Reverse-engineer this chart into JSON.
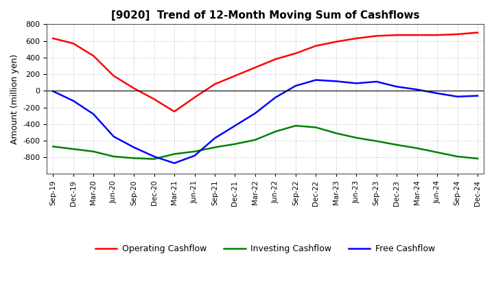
{
  "title": "[9020]  Trend of 12-Month Moving Sum of Cashflows",
  "ylabel": "Amount (million yen)",
  "background_color": "#ffffff",
  "grid_color": "#aaaaaa",
  "x_labels": [
    "Sep-19",
    "Dec-19",
    "Mar-20",
    "Jun-20",
    "Sep-20",
    "Dec-20",
    "Mar-21",
    "Jun-21",
    "Sep-21",
    "Dec-21",
    "Mar-22",
    "Jun-22",
    "Sep-22",
    "Dec-22",
    "Mar-23",
    "Jun-23",
    "Sep-23",
    "Dec-23",
    "Mar-24",
    "Jun-24",
    "Sep-24",
    "Dec-24"
  ],
  "operating_cashflow": [
    630000,
    570000,
    420000,
    180000,
    30000,
    -100000,
    -250000,
    -80000,
    80000,
    180000,
    280000,
    380000,
    450000,
    540000,
    590000,
    630000,
    660000,
    670000,
    670000,
    670000,
    680000,
    700000
  ],
  "investing_cashflow": [
    -670000,
    -700000,
    -730000,
    -790000,
    -810000,
    -820000,
    -760000,
    -730000,
    -680000,
    -640000,
    -590000,
    -490000,
    -420000,
    -440000,
    -510000,
    -565000,
    -605000,
    -650000,
    -690000,
    -740000,
    -790000,
    -815000
  ],
  "free_cashflow": [
    -5000,
    -120000,
    -280000,
    -550000,
    -680000,
    -790000,
    -870000,
    -780000,
    -570000,
    -420000,
    -270000,
    -80000,
    60000,
    130000,
    115000,
    90000,
    110000,
    50000,
    15000,
    -30000,
    -70000,
    -60000
  ],
  "operating_color": "#ff0000",
  "investing_color": "#008000",
  "free_color": "#0000ff",
  "ylim": [
    -1000000,
    800000
  ],
  "yticks": [
    -800000,
    -600000,
    -400000,
    -200000,
    0,
    200000,
    400000,
    600000,
    800000
  ]
}
